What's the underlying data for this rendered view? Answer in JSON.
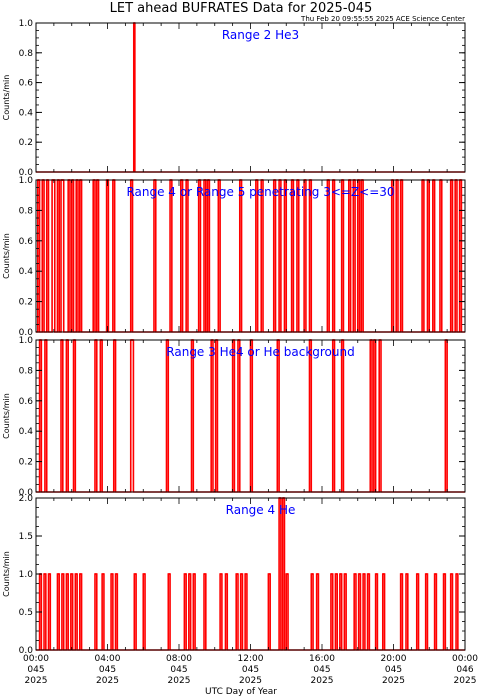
{
  "title": "LET ahead BUFRATES Data for 2025-045",
  "subtitle": "Thu Feb 20 09:55:55 2025 ACE Science Center",
  "xlabel": "UTC Day of Year",
  "ylabel": "Counts/min",
  "colors": {
    "data": "#ff0000",
    "panel_title": "#0000ff",
    "axes": "#000000"
  },
  "x_ticks": [
    {
      "time": "00:00",
      "day": "045",
      "year": "2025"
    },
    {
      "time": "04:00",
      "day": "045",
      "year": "2025"
    },
    {
      "time": "08:00",
      "day": "045",
      "year": "2025"
    },
    {
      "time": "12:00",
      "day": "045",
      "year": "2025"
    },
    {
      "time": "16:00",
      "day": "045",
      "year": "2025"
    },
    {
      "time": "20:00",
      "day": "045",
      "year": "2025"
    },
    {
      "time": "00:00",
      "day": "046",
      "year": "2025"
    }
  ],
  "chart_data": [
    {
      "type": "line",
      "title": "Range 2 He3",
      "x_unit": "hours UTC, day 045",
      "xlim": [
        0,
        24
      ],
      "ylim": [
        0,
        1.0
      ],
      "yticks": [
        "0.0",
        "0.2",
        "0.4",
        "0.6",
        "0.8",
        "1.0"
      ],
      "tick_values": [
        0,
        0.2,
        0.4,
        0.6,
        0.8,
        1.0
      ],
      "spikes": [
        {
          "start": 5.47,
          "end": 5.53,
          "value": 1
        }
      ]
    },
    {
      "type": "line",
      "title": "Range 4 or Range 5 penetrating 3<=Z<=30",
      "x_unit": "hours UTC, day 045",
      "xlim": [
        0,
        24
      ],
      "ylim": [
        0,
        1.0
      ],
      "yticks": [
        "0.0",
        "0.2",
        "0.4",
        "0.6",
        "0.8",
        "1.0"
      ],
      "tick_values": [
        0,
        0.2,
        0.4,
        0.6,
        0.8,
        1.0
      ],
      "spikes": [
        {
          "start": 0.1,
          "end": 0.2,
          "value": 1
        },
        {
          "start": 0.35,
          "end": 0.45,
          "value": 1
        },
        {
          "start": 0.6,
          "end": 0.7,
          "value": 1
        },
        {
          "start": 0.9,
          "end": 1.05,
          "value": 1
        },
        {
          "start": 1.2,
          "end": 1.3,
          "value": 1
        },
        {
          "start": 1.4,
          "end": 1.55,
          "value": 1
        },
        {
          "start": 1.8,
          "end": 1.9,
          "value": 1
        },
        {
          "start": 2.0,
          "end": 2.1,
          "value": 1
        },
        {
          "start": 2.25,
          "end": 2.35,
          "value": 1
        },
        {
          "start": 2.45,
          "end": 2.55,
          "value": 1
        },
        {
          "start": 3.2,
          "end": 3.3,
          "value": 1
        },
        {
          "start": 3.4,
          "end": 3.5,
          "value": 1
        },
        {
          "start": 3.95,
          "end": 4.05,
          "value": 1
        },
        {
          "start": 4.3,
          "end": 4.4,
          "value": 1
        },
        {
          "start": 5.3,
          "end": 5.4,
          "value": 1
        },
        {
          "start": 6.6,
          "end": 6.7,
          "value": 1
        },
        {
          "start": 7.5,
          "end": 7.6,
          "value": 1
        },
        {
          "start": 8.1,
          "end": 8.2,
          "value": 1
        },
        {
          "start": 8.4,
          "end": 8.5,
          "value": 1
        },
        {
          "start": 9.1,
          "end": 9.2,
          "value": 1
        },
        {
          "start": 9.4,
          "end": 9.5,
          "value": 1
        },
        {
          "start": 9.6,
          "end": 9.7,
          "value": 1
        },
        {
          "start": 10.2,
          "end": 10.3,
          "value": 1
        },
        {
          "start": 11.4,
          "end": 11.5,
          "value": 1
        },
        {
          "start": 12.3,
          "end": 12.4,
          "value": 1
        },
        {
          "start": 12.6,
          "end": 12.7,
          "value": 1
        },
        {
          "start": 13.3,
          "end": 13.4,
          "value": 1
        },
        {
          "start": 13.6,
          "end": 13.7,
          "value": 1
        },
        {
          "start": 13.9,
          "end": 14.0,
          "value": 1
        },
        {
          "start": 14.3,
          "end": 14.4,
          "value": 1
        },
        {
          "start": 14.6,
          "end": 14.7,
          "value": 1
        },
        {
          "start": 15.0,
          "end": 15.1,
          "value": 1
        },
        {
          "start": 15.3,
          "end": 15.4,
          "value": 1
        },
        {
          "start": 16.3,
          "end": 16.4,
          "value": 1
        },
        {
          "start": 16.6,
          "end": 16.7,
          "value": 1
        },
        {
          "start": 17.1,
          "end": 17.2,
          "value": 1
        },
        {
          "start": 17.5,
          "end": 17.6,
          "value": 1
        },
        {
          "start": 17.75,
          "end": 17.85,
          "value": 1
        },
        {
          "start": 18.0,
          "end": 18.1,
          "value": 1
        },
        {
          "start": 18.2,
          "end": 18.3,
          "value": 1
        },
        {
          "start": 19.9,
          "end": 20.0,
          "value": 1
        },
        {
          "start": 20.15,
          "end": 20.25,
          "value": 1
        },
        {
          "start": 20.4,
          "end": 20.5,
          "value": 1
        },
        {
          "start": 21.6,
          "end": 21.7,
          "value": 1
        },
        {
          "start": 21.9,
          "end": 22.0,
          "value": 1
        },
        {
          "start": 22.2,
          "end": 22.3,
          "value": 1
        },
        {
          "start": 22.6,
          "end": 22.7,
          "value": 1
        },
        {
          "start": 23.2,
          "end": 23.3,
          "value": 1
        },
        {
          "start": 23.45,
          "end": 23.55,
          "value": 1
        },
        {
          "start": 23.7,
          "end": 23.8,
          "value": 1
        }
      ]
    },
    {
      "type": "line",
      "title": "Range 3 He4 or He background",
      "x_unit": "hours UTC, day 045",
      "xlim": [
        0,
        24
      ],
      "ylim": [
        0,
        1.0
      ],
      "yticks": [
        "0.0",
        "0.2",
        "0.4",
        "0.6",
        "0.8",
        "1.0"
      ],
      "tick_values": [
        0,
        0.2,
        0.4,
        0.6,
        0.8,
        1.0
      ],
      "spikes": [
        {
          "start": 0.2,
          "end": 0.3,
          "value": 1
        },
        {
          "start": 0.5,
          "end": 0.6,
          "value": 1
        },
        {
          "start": 1.4,
          "end": 1.5,
          "value": 1
        },
        {
          "start": 1.7,
          "end": 1.8,
          "value": 1
        },
        {
          "start": 2.1,
          "end": 2.2,
          "value": 1
        },
        {
          "start": 3.3,
          "end": 3.4,
          "value": 1
        },
        {
          "start": 3.6,
          "end": 3.7,
          "value": 1
        },
        {
          "start": 4.35,
          "end": 4.45,
          "value": 1
        },
        {
          "start": 5.3,
          "end": 5.45,
          "value": 1
        },
        {
          "start": 7.3,
          "end": 7.4,
          "value": 1
        },
        {
          "start": 8.7,
          "end": 8.8,
          "value": 1
        },
        {
          "start": 9.8,
          "end": 9.9,
          "value": 1
        },
        {
          "start": 10.05,
          "end": 10.15,
          "value": 1
        },
        {
          "start": 11.0,
          "end": 11.1,
          "value": 1
        },
        {
          "start": 11.3,
          "end": 11.4,
          "value": 1
        },
        {
          "start": 12.0,
          "end": 12.1,
          "value": 1
        },
        {
          "start": 13.5,
          "end": 13.6,
          "value": 1
        },
        {
          "start": 15.3,
          "end": 15.4,
          "value": 1
        },
        {
          "start": 16.6,
          "end": 16.7,
          "value": 1
        },
        {
          "start": 17.1,
          "end": 17.2,
          "value": 1
        },
        {
          "start": 18.7,
          "end": 18.8,
          "value": 1
        },
        {
          "start": 18.9,
          "end": 19.0,
          "value": 1
        },
        {
          "start": 19.2,
          "end": 19.3,
          "value": 1
        },
        {
          "start": 22.9,
          "end": 23.0,
          "value": 1
        }
      ]
    },
    {
      "type": "line",
      "title": "Range 4 He",
      "x_unit": "hours UTC, day 045",
      "xlim": [
        0,
        24
      ],
      "ylim": [
        0,
        2.0
      ],
      "yticks": [
        "0.0",
        "0.5",
        "1.0",
        "1.5",
        "2.0"
      ],
      "tick_values": [
        0,
        0.5,
        1.0,
        1.5,
        2.0
      ],
      "spikes": [
        {
          "start": 0.2,
          "end": 0.3,
          "value": 1
        },
        {
          "start": 0.45,
          "end": 0.55,
          "value": 1
        },
        {
          "start": 0.7,
          "end": 0.8,
          "value": 1
        },
        {
          "start": 1.2,
          "end": 1.3,
          "value": 1
        },
        {
          "start": 1.45,
          "end": 1.55,
          "value": 1
        },
        {
          "start": 1.7,
          "end": 1.8,
          "value": 1
        },
        {
          "start": 1.95,
          "end": 2.05,
          "value": 1
        },
        {
          "start": 2.2,
          "end": 2.3,
          "value": 1
        },
        {
          "start": 2.45,
          "end": 2.55,
          "value": 1
        },
        {
          "start": 3.3,
          "end": 3.4,
          "value": 1
        },
        {
          "start": 3.7,
          "end": 3.8,
          "value": 1
        },
        {
          "start": 4.2,
          "end": 4.3,
          "value": 1
        },
        {
          "start": 4.45,
          "end": 4.55,
          "value": 1
        },
        {
          "start": 5.5,
          "end": 5.6,
          "value": 1
        },
        {
          "start": 6.0,
          "end": 6.1,
          "value": 1
        },
        {
          "start": 7.4,
          "end": 7.5,
          "value": 1
        },
        {
          "start": 8.3,
          "end": 8.4,
          "value": 1
        },
        {
          "start": 8.55,
          "end": 8.65,
          "value": 1
        },
        {
          "start": 8.8,
          "end": 8.9,
          "value": 1
        },
        {
          "start": 9.4,
          "end": 9.5,
          "value": 1
        },
        {
          "start": 10.3,
          "end": 10.4,
          "value": 1
        },
        {
          "start": 10.6,
          "end": 10.7,
          "value": 1
        },
        {
          "start": 11.2,
          "end": 11.3,
          "value": 1
        },
        {
          "start": 11.45,
          "end": 11.55,
          "value": 1
        },
        {
          "start": 11.7,
          "end": 11.8,
          "value": 1
        },
        {
          "start": 13.0,
          "end": 13.1,
          "value": 1
        },
        {
          "start": 13.6,
          "end": 13.7,
          "value": 2
        },
        {
          "start": 13.8,
          "end": 13.9,
          "value": 2
        },
        {
          "start": 14.0,
          "end": 14.1,
          "value": 1
        },
        {
          "start": 15.4,
          "end": 15.5,
          "value": 1
        },
        {
          "start": 15.7,
          "end": 15.8,
          "value": 1
        },
        {
          "start": 16.5,
          "end": 16.6,
          "value": 1
        },
        {
          "start": 16.75,
          "end": 16.85,
          "value": 1
        },
        {
          "start": 17.0,
          "end": 17.1,
          "value": 1
        },
        {
          "start": 17.25,
          "end": 17.35,
          "value": 1
        },
        {
          "start": 17.8,
          "end": 17.9,
          "value": 1
        },
        {
          "start": 18.05,
          "end": 18.15,
          "value": 1
        },
        {
          "start": 18.3,
          "end": 18.4,
          "value": 1
        },
        {
          "start": 18.55,
          "end": 18.65,
          "value": 1
        },
        {
          "start": 19.0,
          "end": 19.1,
          "value": 1
        },
        {
          "start": 19.4,
          "end": 19.5,
          "value": 1
        },
        {
          "start": 20.4,
          "end": 20.5,
          "value": 1
        },
        {
          "start": 20.7,
          "end": 20.8,
          "value": 1
        },
        {
          "start": 21.3,
          "end": 21.4,
          "value": 1
        },
        {
          "start": 21.8,
          "end": 21.9,
          "value": 1
        },
        {
          "start": 22.3,
          "end": 22.4,
          "value": 1
        },
        {
          "start": 22.8,
          "end": 22.9,
          "value": 1
        },
        {
          "start": 23.2,
          "end": 23.3,
          "value": 1
        },
        {
          "start": 23.5,
          "end": 23.6,
          "value": 1
        }
      ]
    }
  ]
}
